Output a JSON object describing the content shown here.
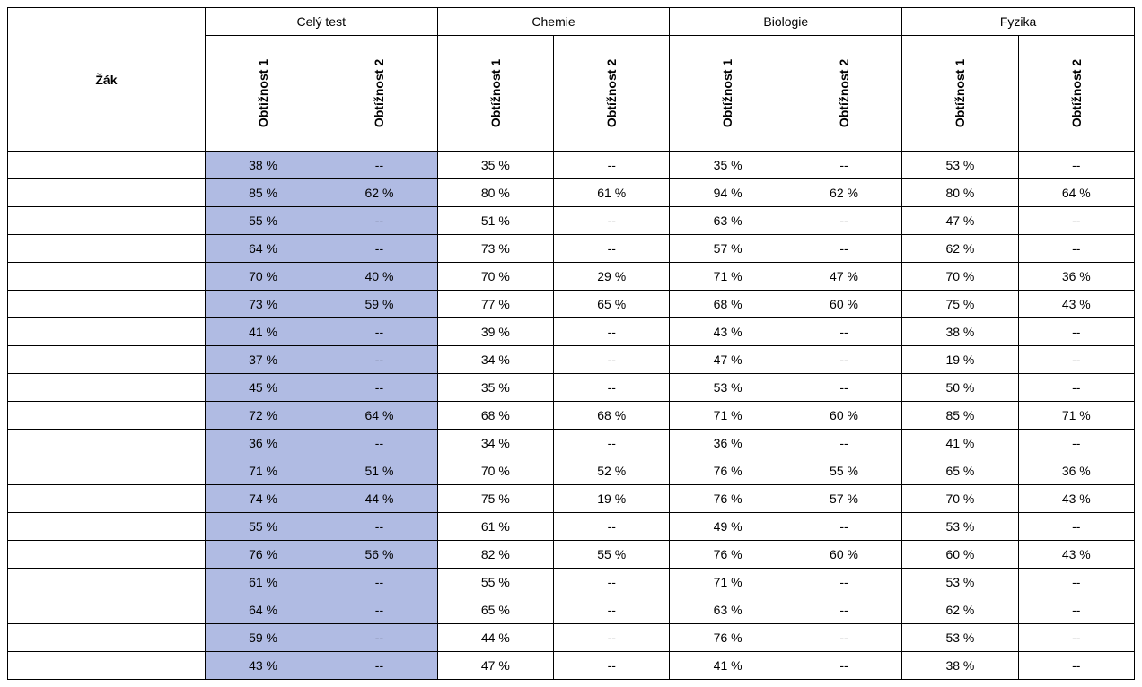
{
  "table": {
    "type": "table",
    "highlight_color": "#b0bbe3",
    "background_color": "#ffffff",
    "border_color": "#000000",
    "font_family": "Arial",
    "font_size_pt": 11,
    "header_font_weight": "bold",
    "row_header": "Žák",
    "groups": [
      "Celý test",
      "Chemie",
      "Biologie",
      "Fyzika"
    ],
    "subheaders": [
      "Obtížnost 1",
      "Obtížnost 2"
    ],
    "highlighted_group_indices": [
      0
    ],
    "columns": [
      "Žák",
      "Celý test / Obtížnost 1",
      "Celý test / Obtížnost 2",
      "Chemie / Obtížnost 1",
      "Chemie / Obtížnost 2",
      "Biologie / Obtížnost 1",
      "Biologie / Obtížnost 2",
      "Fyzika / Obtížnost 1",
      "Fyzika / Obtížnost 2"
    ],
    "rows": [
      {
        "student": "",
        "cells": [
          "38 %",
          "--",
          "35 %",
          "--",
          "35 %",
          "--",
          "53 %",
          "--"
        ]
      },
      {
        "student": "",
        "cells": [
          "85 %",
          "62 %",
          "80 %",
          "61 %",
          "94 %",
          "62 %",
          "80 %",
          "64 %"
        ]
      },
      {
        "student": "",
        "cells": [
          "55 %",
          "--",
          "51 %",
          "--",
          "63 %",
          "--",
          "47 %",
          "--"
        ]
      },
      {
        "student": "",
        "cells": [
          "64 %",
          "--",
          "73 %",
          "--",
          "57 %",
          "--",
          "62 %",
          "--"
        ]
      },
      {
        "student": "",
        "cells": [
          "70 %",
          "40 %",
          "70 %",
          "29 %",
          "71 %",
          "47 %",
          "70 %",
          "36 %"
        ]
      },
      {
        "student": "",
        "cells": [
          "73 %",
          "59 %",
          "77 %",
          "65 %",
          "68 %",
          "60 %",
          "75 %",
          "43 %"
        ]
      },
      {
        "student": "",
        "cells": [
          "41 %",
          "--",
          "39 %",
          "--",
          "43 %",
          "--",
          "38 %",
          "--"
        ]
      },
      {
        "student": "",
        "cells": [
          "37 %",
          "--",
          "34 %",
          "--",
          "47 %",
          "--",
          "19 %",
          "--"
        ]
      },
      {
        "student": "",
        "cells": [
          "45 %",
          "--",
          "35 %",
          "--",
          "53 %",
          "--",
          "50 %",
          "--"
        ]
      },
      {
        "student": "",
        "cells": [
          "72 %",
          "64 %",
          "68 %",
          "68 %",
          "71 %",
          "60 %",
          "85 %",
          "71 %"
        ]
      },
      {
        "student": "",
        "cells": [
          "36 %",
          "--",
          "34 %",
          "--",
          "36 %",
          "--",
          "41 %",
          "--"
        ]
      },
      {
        "student": "",
        "cells": [
          "71 %",
          "51 %",
          "70 %",
          "52 %",
          "76 %",
          "55 %",
          "65 %",
          "36 %"
        ]
      },
      {
        "student": "",
        "cells": [
          "74 %",
          "44 %",
          "75 %",
          "19 %",
          "76 %",
          "57 %",
          "70 %",
          "43 %"
        ]
      },
      {
        "student": "",
        "cells": [
          "55 %",
          "--",
          "61 %",
          "--",
          "49 %",
          "--",
          "53 %",
          "--"
        ]
      },
      {
        "student": "",
        "cells": [
          "76 %",
          "56 %",
          "82 %",
          "55 %",
          "76 %",
          "60 %",
          "60 %",
          "43 %"
        ]
      },
      {
        "student": "",
        "cells": [
          "61 %",
          "--",
          "55 %",
          "--",
          "71 %",
          "--",
          "53 %",
          "--"
        ]
      },
      {
        "student": "",
        "cells": [
          "64 %",
          "--",
          "65 %",
          "--",
          "63 %",
          "--",
          "62 %",
          "--"
        ]
      },
      {
        "student": "",
        "cells": [
          "59 %",
          "--",
          "44 %",
          "--",
          "76 %",
          "--",
          "53 %",
          "--"
        ]
      },
      {
        "student": "",
        "cells": [
          "43 %",
          "--",
          "47 %",
          "--",
          "41 %",
          "--",
          "38 %",
          "--"
        ]
      }
    ]
  }
}
